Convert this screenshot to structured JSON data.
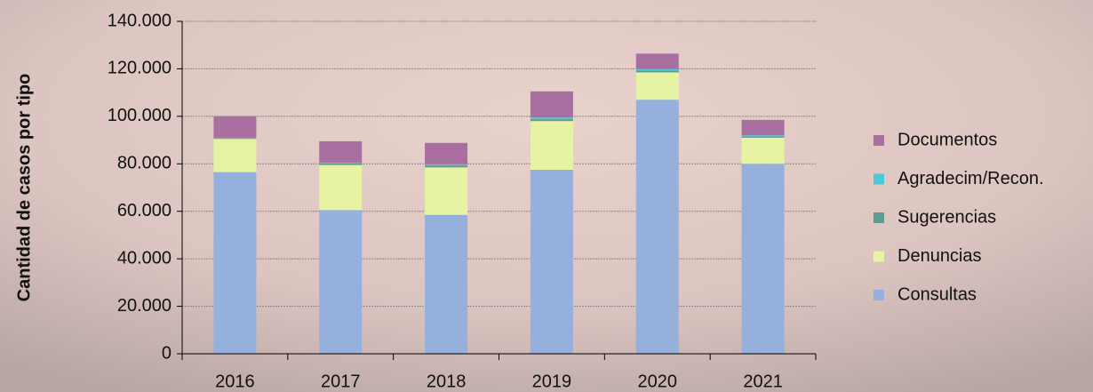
{
  "chart_data": {
    "type": "stacked_bar",
    "y_label": "Cantidad de casos por tipo",
    "categories": [
      "2016",
      "2017",
      "2018",
      "2019",
      "2020",
      "2021"
    ],
    "series": [
      {
        "name": "Consultas",
        "color": "#95b0dc",
        "values": [
          76500,
          60500,
          58500,
          77500,
          107000,
          80000
        ]
      },
      {
        "name": "Denuncias",
        "color": "#e6f3a2",
        "values": [
          14000,
          19000,
          20000,
          20500,
          11500,
          11000
        ]
      },
      {
        "name": "Sugerencias",
        "color": "#5f9a93",
        "values": [
          300,
          600,
          800,
          800,
          800,
          600
        ]
      },
      {
        "name": "Agradecim/Recon.",
        "color": "#4fc8d8",
        "values": [
          200,
          400,
          500,
          700,
          600,
          400
        ]
      },
      {
        "name": "Documentos",
        "color": "#a86fa0",
        "values": [
          9000,
          9000,
          9000,
          11000,
          6500,
          6500
        ]
      }
    ],
    "ylim": [
      0,
      140000
    ],
    "yticks": [
      0,
      {
        "value": 20000,
        "label": "20.000"
      },
      {
        "value": 40000,
        "label": "40.000"
      },
      {
        "value": 60000,
        "label": "60.000"
      },
      {
        "value": 80000,
        "label": "80.000"
      },
      {
        "value": 100000,
        "label": "100.000"
      },
      {
        "value": 120000,
        "label": "120.000"
      },
      {
        "value": 140000,
        "label": "140.000"
      }
    ],
    "grid": true,
    "legend": "right"
  }
}
